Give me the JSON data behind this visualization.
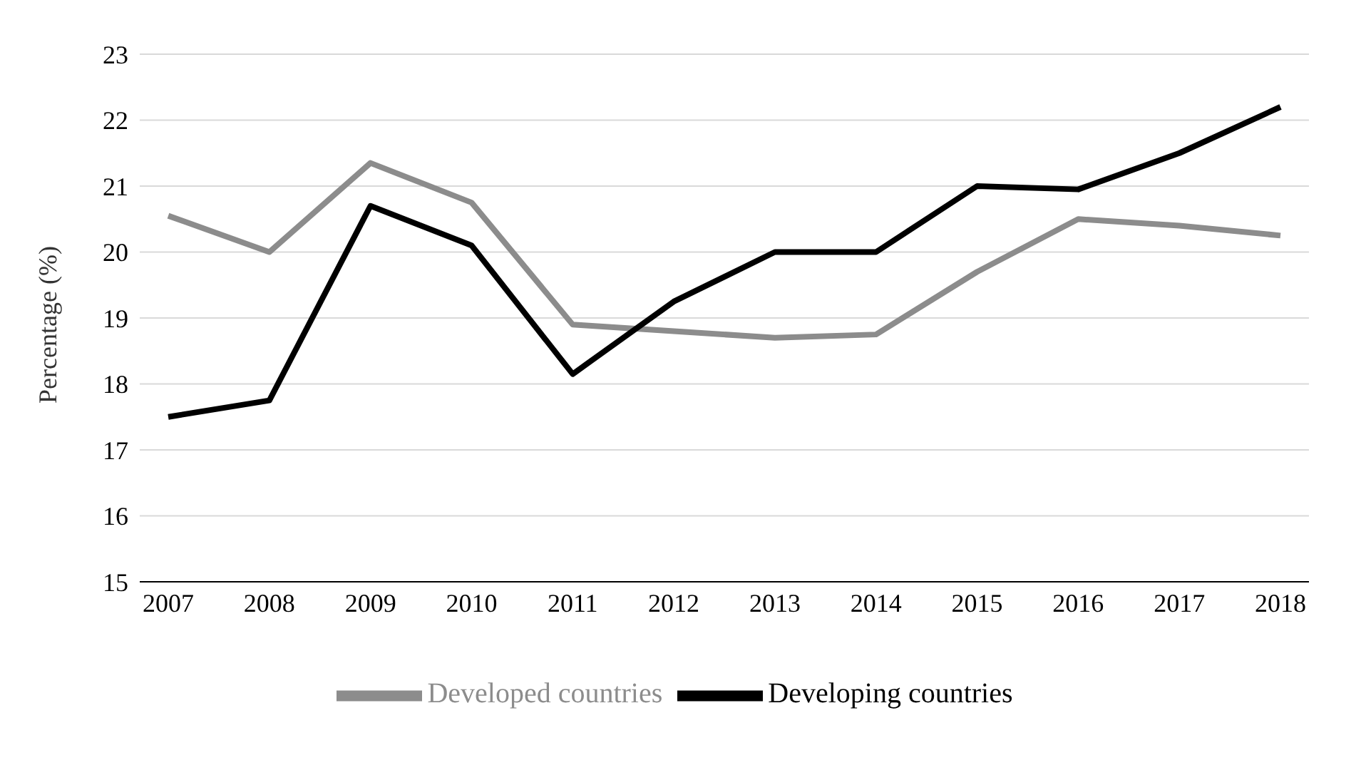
{
  "chart_data": {
    "type": "line",
    "ylabel": "Percentage (%)",
    "categories": [
      "2007",
      "2008",
      "2009",
      "2010",
      "2011",
      "2012",
      "2013",
      "2014",
      "2015",
      "2016",
      "2017",
      "2018"
    ],
    "series": [
      {
        "name": "Developed countries",
        "color": "#8c8c8c",
        "values": [
          20.55,
          20.0,
          21.35,
          20.75,
          18.9,
          18.8,
          18.7,
          18.75,
          19.7,
          20.5,
          20.4,
          20.25
        ]
      },
      {
        "name": "Developing countries",
        "color": "#000000",
        "values": [
          17.5,
          17.75,
          20.7,
          20.1,
          18.15,
          19.25,
          20.0,
          20.0,
          21.0,
          20.95,
          21.5,
          22.2
        ]
      }
    ],
    "ylim": [
      15,
      23
    ],
    "yticks": [
      15,
      16,
      17,
      18,
      19,
      20,
      21,
      22,
      23
    ],
    "grid": "y",
    "legend": "bottom",
    "marker": "none",
    "line_style": "solid"
  }
}
